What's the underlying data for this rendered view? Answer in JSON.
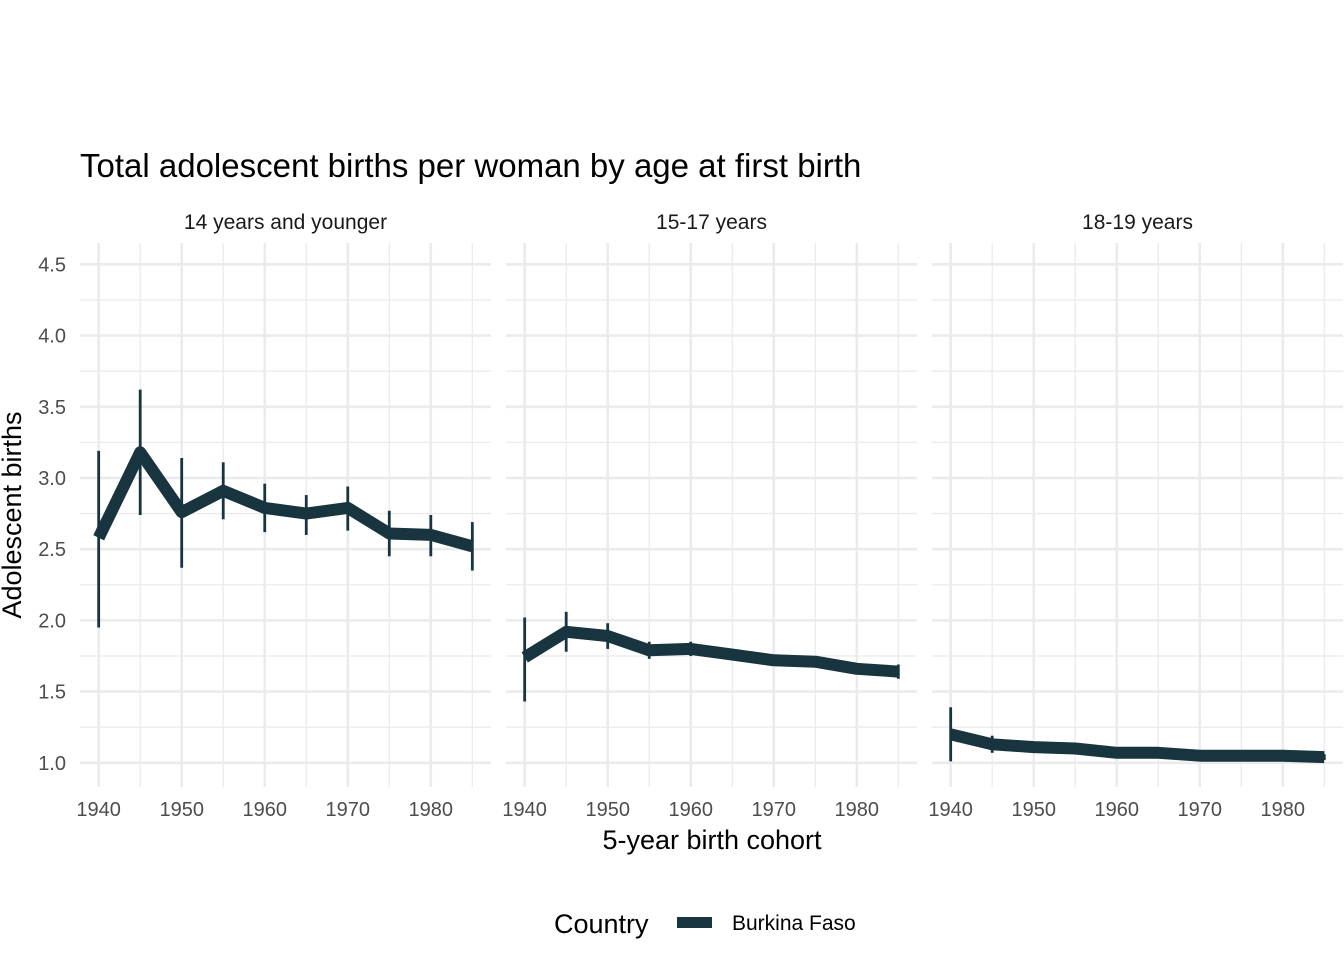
{
  "chart_data": {
    "type": "line",
    "title": "Total adolescent births per woman by age at first birth",
    "xlabel": "5-year birth cohort",
    "ylabel": "Adolescent births",
    "ylim": [
      0.83,
      4.65
    ],
    "xlim": [
      1937.75,
      1987.25
    ],
    "y_ticks": [
      1.0,
      1.5,
      2.0,
      2.5,
      3.0,
      3.5,
      4.0,
      4.5
    ],
    "y_tick_labels": [
      "1.0",
      "1.5",
      "2.0",
      "2.5",
      "3.0",
      "3.5",
      "4.0",
      "4.5"
    ],
    "x_ticks": [
      1940,
      1950,
      1960,
      1970,
      1980
    ],
    "x_tick_labels": [
      "1940",
      "1950",
      "1960",
      "1970",
      "1980"
    ],
    "grid": true,
    "legend_position": "bottom",
    "legend_title": "Country",
    "series_color": "#17343f",
    "x": [
      1940,
      1945,
      1950,
      1955,
      1960,
      1965,
      1970,
      1975,
      1980,
      1985
    ],
    "panels": [
      {
        "strip_label": "14 years and younger",
        "series": [
          {
            "name": "Burkina Faso",
            "values": [
              2.58,
              3.18,
              2.76,
              2.91,
              2.79,
              2.75,
              2.79,
              2.61,
              2.6,
              2.52
            ],
            "error_low": [
              1.95,
              2.74,
              2.37,
              2.71,
              2.62,
              2.6,
              2.63,
              2.45,
              2.45,
              2.35
            ],
            "error_high": [
              3.19,
              3.62,
              3.14,
              3.11,
              2.96,
              2.88,
              2.94,
              2.77,
              2.74,
              2.69
            ]
          }
        ]
      },
      {
        "strip_label": "15-17 years",
        "series": [
          {
            "name": "Burkina Faso",
            "values": [
              1.74,
              1.92,
              1.89,
              1.79,
              1.8,
              1.76,
              1.72,
              1.71,
              1.66,
              1.64
            ],
            "error_low": [
              1.43,
              1.78,
              1.8,
              1.73,
              1.75,
              1.72,
              1.69,
              1.68,
              1.63,
              1.59
            ],
            "error_high": [
              2.02,
              2.06,
              1.98,
              1.85,
              1.85,
              1.8,
              1.75,
              1.74,
              1.69,
              1.69
            ]
          }
        ]
      },
      {
        "strip_label": "18-19 years",
        "series": [
          {
            "name": "Burkina Faso",
            "values": [
              1.2,
              1.13,
              1.11,
              1.1,
              1.07,
              1.07,
              1.05,
              1.05,
              1.05,
              1.04
            ],
            "error_low": [
              1.01,
              1.07,
              1.08,
              1.08,
              1.06,
              1.06,
              1.04,
              1.04,
              1.04,
              1.02
            ],
            "error_high": [
              1.39,
              1.19,
              1.14,
              1.12,
              1.09,
              1.09,
              1.07,
              1.06,
              1.06,
              1.06
            ]
          }
        ]
      }
    ],
    "legend_entries": [
      "Burkina Faso"
    ]
  }
}
